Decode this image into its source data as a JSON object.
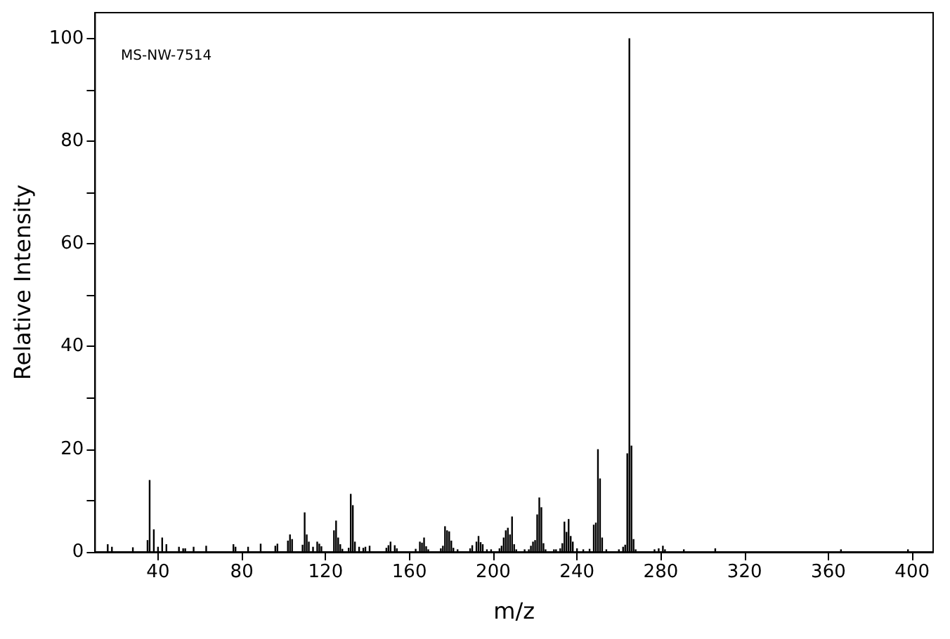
{
  "chart_data": {
    "type": "bar",
    "xlabel": "m/z",
    "ylabel": "Relative Intensity",
    "annotations": [
      "MS-NW-7514"
    ],
    "x": [
      16,
      18,
      28,
      35,
      36,
      38,
      40,
      42,
      44,
      50,
      52,
      53,
      57,
      63,
      76,
      77,
      83,
      89,
      96,
      97,
      102,
      103,
      104,
      109,
      110,
      111,
      112,
      114,
      116,
      117,
      118,
      124,
      125,
      126,
      127,
      128,
      131,
      132,
      133,
      134,
      136,
      138,
      139,
      141,
      149,
      150,
      151,
      153,
      154,
      163,
      165,
      166,
      167,
      168,
      169,
      175,
      176,
      177,
      178,
      179,
      180,
      181,
      183,
      189,
      190,
      192,
      193,
      194,
      195,
      197,
      199,
      203,
      204,
      205,
      206,
      207,
      208,
      209,
      210,
      211,
      215,
      217,
      218,
      219,
      220,
      221,
      222,
      223,
      224,
      225,
      229,
      230,
      232,
      233,
      234,
      235,
      236,
      237,
      238,
      240,
      243,
      246,
      248,
      249,
      250,
      251,
      252,
      254,
      260,
      262,
      263,
      264,
      265,
      266,
      267,
      268,
      277,
      279,
      281,
      282,
      291,
      306,
      366,
      398
    ],
    "values": [
      1.5,
      1,
      0.9,
      2.3,
      14,
      4.4,
      1,
      2.8,
      1.5,
      1,
      0.7,
      0.7,
      1,
      1.2,
      1.5,
      1,
      1,
      1.6,
      1.2,
      1.6,
      2.2,
      3.4,
      2.5,
      1.4,
      7.7,
      3.4,
      2,
      1,
      2,
      1.6,
      1.1,
      4.2,
      6.1,
      2.8,
      1.5,
      0.6,
      0.8,
      11.3,
      9.1,
      2,
      1,
      0.8,
      1,
      1.2,
      0.8,
      1.3,
      2,
      1.3,
      0.7,
      0.6,
      2,
      1.8,
      2.8,
      1.1,
      0.5,
      0.7,
      1.2,
      5,
      4.2,
      4,
      2.2,
      0.8,
      0.5,
      0.7,
      1.3,
      2,
      3.1,
      1.9,
      1.5,
      0.5,
      0.5,
      0.7,
      1.2,
      2.8,
      4.2,
      4.7,
      3.4,
      6.9,
      1.5,
      0.5,
      0.5,
      0.5,
      1.2,
      2,
      2.3,
      7.3,
      10.6,
      8.7,
      1.7,
      0.5,
      0.5,
      0.5,
      0.7,
      1.7,
      5.9,
      3.9,
      6.4,
      3.1,
      2,
      0.7,
      0.5,
      0.6,
      5.3,
      5.7,
      20,
      14.3,
      2.8,
      0.5,
      0.5,
      1,
      1.4,
      19.2,
      100,
      20.7,
      2.5,
      0.5,
      0.5,
      0.7,
      1.2,
      0.5,
      0.5,
      0.7,
      0.5,
      0.5
    ],
    "color": "#000000",
    "xlim": [
      10,
      410
    ],
    "xticks": [
      40,
      80,
      120,
      160,
      200,
      240,
      280,
      320,
      360,
      400
    ],
    "ylim": [
      0,
      105
    ],
    "yticks": [
      0,
      {
        "value": 10,
        "label": null
      },
      20,
      {
        "value": 30,
        "label": null
      },
      40,
      {
        "value": 50,
        "label": null
      },
      60,
      {
        "value": 70,
        "label": null
      },
      80,
      {
        "value": 90,
        "label": null
      },
      100
    ],
    "grid": false
  }
}
